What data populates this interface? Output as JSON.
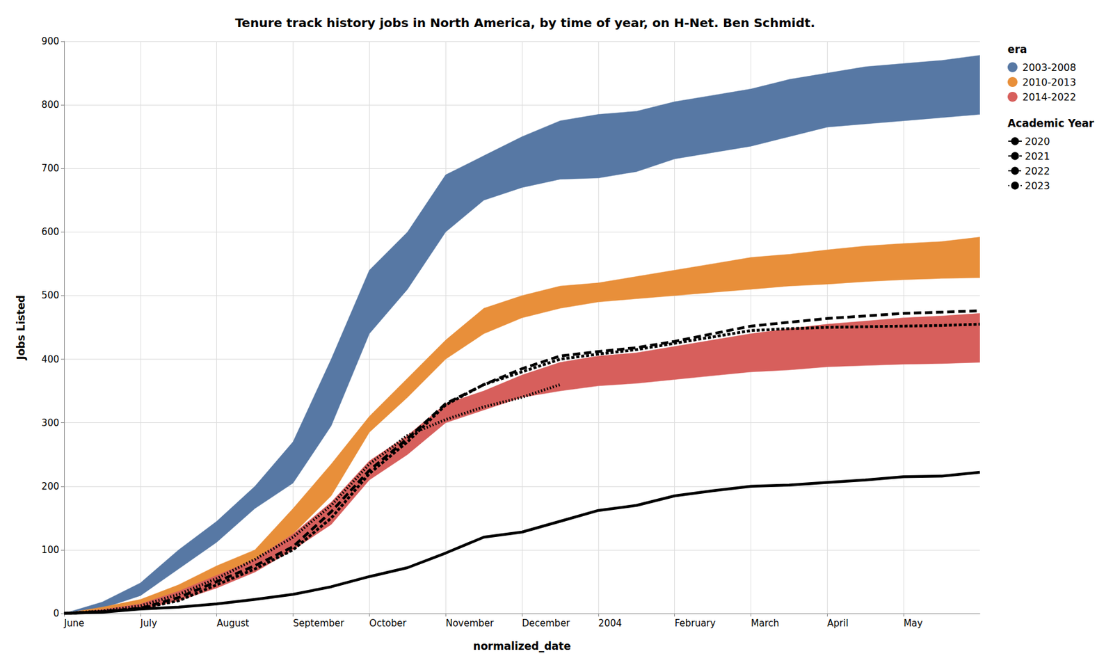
{
  "chart_data": {
    "type": "line",
    "title": "Tenure track history jobs in North America, by time of year, on H-Net. Ben Schmidt.",
    "x_label": "normalized_date",
    "y_label": "Jobs Listed",
    "categories": [
      "June",
      null,
      "July",
      null,
      "August",
      null,
      "September",
      null,
      "October",
      null,
      "November",
      null,
      "December",
      null,
      "2004",
      null,
      "February",
      null,
      "March",
      null,
      "April",
      null,
      "May",
      null,
      null
    ],
    "ylim": [
      0,
      900
    ],
    "yticks": [
      0,
      100,
      200,
      300,
      400,
      500,
      600,
      700,
      800,
      900
    ],
    "grid": true,
    "legend": "right",
    "series": [
      {
        "name": "2003-2008",
        "type": "band",
        "color": "#5778a4",
        "legend_title": "era",
        "low": [
          0,
          8,
          28,
          70,
          112,
          165,
          205,
          295,
          440,
          510,
          600,
          650,
          670,
          683,
          685,
          695,
          715,
          725,
          735,
          750,
          765,
          770,
          775,
          780,
          785
        ],
        "high": [
          0,
          18,
          48,
          100,
          145,
          200,
          270,
          400,
          540,
          600,
          690,
          720,
          750,
          775,
          785,
          790,
          805,
          815,
          825,
          840,
          850,
          860,
          865,
          870,
          878
        ]
      },
      {
        "name": "2010-2013",
        "type": "band",
        "color": "#e88f3a",
        "legend_title": "era",
        "low": [
          0,
          5,
          12,
          28,
          50,
          85,
          125,
          185,
          285,
          340,
          400,
          440,
          465,
          480,
          490,
          495,
          500,
          505,
          510,
          515,
          518,
          522,
          525,
          527,
          528
        ],
        "high": [
          0,
          10,
          22,
          45,
          75,
          100,
          165,
          235,
          310,
          370,
          430,
          480,
          500,
          515,
          520,
          530,
          540,
          550,
          560,
          565,
          572,
          578,
          582,
          585,
          592
        ]
      },
      {
        "name": "2014-2022",
        "type": "band",
        "color": "#d75f5c",
        "legend_title": "era",
        "low": [
          0,
          2,
          6,
          20,
          40,
          65,
          100,
          140,
          210,
          250,
          300,
          320,
          340,
          350,
          358,
          362,
          368,
          374,
          380,
          383,
          388,
          390,
          392,
          393,
          395
        ],
        "high": [
          0,
          6,
          15,
          35,
          60,
          85,
          125,
          175,
          240,
          280,
          330,
          350,
          375,
          395,
          405,
          410,
          420,
          430,
          440,
          448,
          455,
          460,
          465,
          468,
          472
        ]
      },
      {
        "name": "2020",
        "type": "line",
        "color": "#000000",
        "line_style": "solid",
        "legend_title": "Academic Year",
        "values": [
          0,
          2,
          7,
          10,
          15,
          22,
          30,
          42,
          58,
          72,
          95,
          120,
          128,
          145,
          162,
          170,
          185,
          193,
          200,
          202,
          206,
          210,
          215,
          216,
          222
        ]
      },
      {
        "name": "2021",
        "type": "line",
        "color": "#000000",
        "line_style": "dashed",
        "legend_title": "Academic Year",
        "values": [
          0,
          3,
          8,
          25,
          50,
          75,
          105,
          160,
          225,
          275,
          330,
          360,
          385,
          405,
          412,
          418,
          428,
          440,
          452,
          458,
          464,
          468,
          472,
          474,
          476
        ]
      },
      {
        "name": "2022",
        "type": "line",
        "color": "#000000",
        "line_style": "densely-dashed",
        "legend_title": "Academic Year",
        "values": [
          0,
          3,
          8,
          20,
          45,
          70,
          100,
          150,
          220,
          270,
          328,
          360,
          380,
          400,
          408,
          415,
          425,
          435,
          445,
          448,
          450,
          451,
          452,
          453,
          455
        ]
      },
      {
        "name": "2023",
        "type": "line",
        "color": "#000000",
        "line_style": "dotted",
        "legend_title": "Academic Year",
        "values": [
          0,
          4,
          12,
          30,
          55,
          85,
          120,
          170,
          235,
          280,
          305,
          325,
          340,
          360,
          null,
          null,
          null,
          null,
          null,
          null,
          null,
          null,
          null,
          null,
          null
        ]
      }
    ]
  }
}
